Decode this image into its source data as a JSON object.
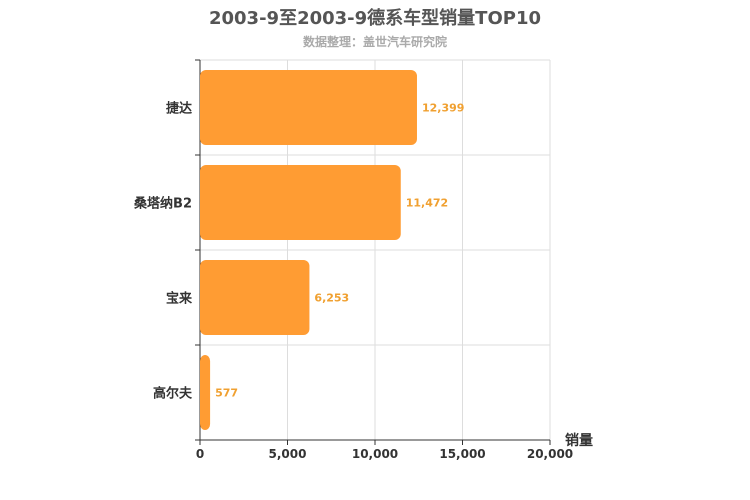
{
  "chart_data": {
    "type": "bar",
    "orientation": "horizontal",
    "title": "2003-9至2003-9德系车型销量TOP10",
    "subtitle": "数据整理：盖世汽车研究院",
    "categories": [
      "捷达",
      "桑塔纳B2",
      "宝来",
      "高尔夫"
    ],
    "values": [
      12399,
      11472,
      6253,
      577
    ],
    "value_labels": [
      "12,399",
      "11,472",
      "6,253",
      "577"
    ],
    "xlabel": "销量",
    "xlim": [
      0,
      20000
    ],
    "xticks": [
      0,
      5000,
      10000,
      15000,
      20000
    ],
    "xtick_labels": [
      "0",
      "5,000",
      "10,000",
      "15,000",
      "20,000"
    ],
    "grid": true,
    "bar_color": "#ff9c33",
    "label_color": "#f0a030"
  }
}
